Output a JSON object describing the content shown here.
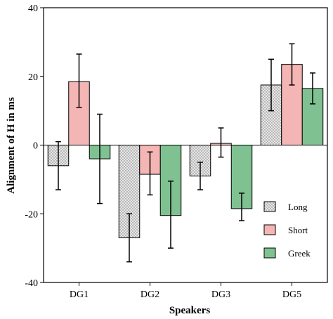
{
  "chart_data": {
    "type": "bar",
    "title": "",
    "xlabel": "Speakers",
    "ylabel": "Alignment of H in ms",
    "ylim": [
      -40,
      40
    ],
    "yticks": [
      -40,
      -20,
      0,
      20,
      40
    ],
    "categories": [
      "DG1",
      "DG2",
      "DG3",
      "DG5"
    ],
    "series": [
      {
        "name": "Long",
        "color": "#d9d9d9",
        "pattern": "dots",
        "values": [
          -6,
          -27,
          -9,
          17.5
        ],
        "err_low": [
          -13,
          -34,
          -13,
          10
        ],
        "err_high": [
          1,
          -20,
          -5,
          25
        ]
      },
      {
        "name": "Short",
        "color": "#f4b6b4",
        "pattern": "none",
        "values": [
          18.5,
          -8.5,
          0.5,
          23.5
        ],
        "err_low": [
          11,
          -14.5,
          -3.5,
          17.5
        ],
        "err_high": [
          26.5,
          -2,
          5,
          29.5
        ]
      },
      {
        "name": "Greek",
        "color": "#7fc190",
        "pattern": "none",
        "values": [
          -4,
          -20.5,
          -18.5,
          16.5
        ],
        "err_low": [
          -17,
          -30,
          -22,
          12
        ],
        "err_high": [
          9,
          -10.5,
          -14,
          21
        ]
      }
    ],
    "legend": {
      "position": "bottom-right"
    },
    "grid": false
  }
}
